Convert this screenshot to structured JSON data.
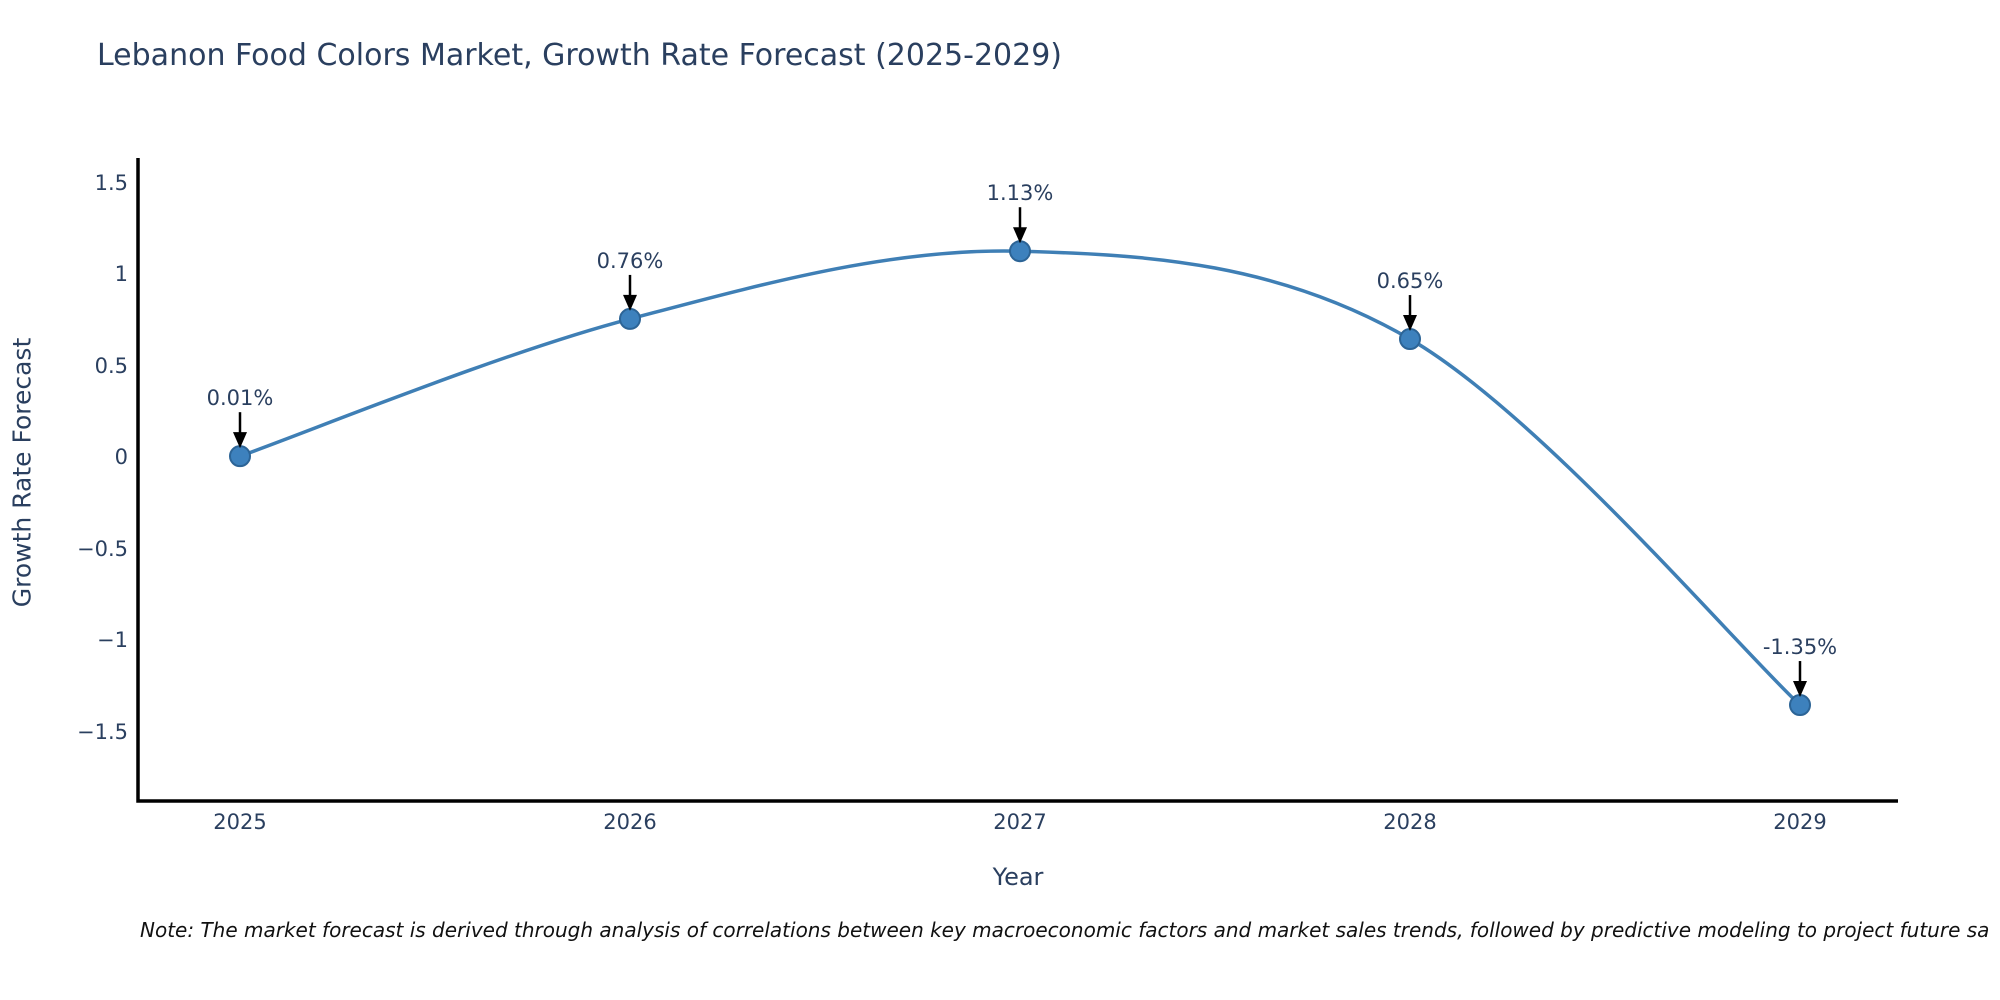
{
  "page": {
    "note": "Note: The market forecast is derived through analysis of correlations between key macroeconomic factors and market sales trends, followed by predictive modeling to project future sa"
  },
  "chart_data": {
    "type": "line",
    "title": "Lebanon Food Colors Market, Growth Rate Forecast (2025-2029)",
    "xlabel": "Year",
    "ylabel": "Growth Rate Forecast",
    "x": [
      2025,
      2026,
      2027,
      2028,
      2029
    ],
    "series": [
      {
        "name": "Growth Rate Forecast",
        "values": [
          0.01,
          0.76,
          1.13,
          0.65,
          -1.35
        ]
      }
    ],
    "point_labels": [
      "0.01%",
      "0.76%",
      "1.13%",
      "0.65%",
      "-1.35%"
    ],
    "x_tick_labels": [
      "2025",
      "2026",
      "2027",
      "2028",
      "2029"
    ],
    "y_ticks": [
      1.5,
      1,
      0.5,
      0,
      -0.5,
      -1,
      -1.5
    ],
    "y_tick_labels": [
      "1.5",
      "1",
      "0.5",
      "0",
      "−0.5",
      "−1",
      "−1.5"
    ],
    "ylim": [
      -1.87,
      1.64
    ],
    "grid": false,
    "legend": false,
    "line_shape": "spline",
    "marker_size": 20,
    "colors": {
      "line": "#3f7fb5",
      "marker_fill": "#3d81bd",
      "marker_edge": "#2c6496",
      "axis_line": "#000000",
      "text": "#2a3f5f",
      "annotation_arrow": "#000000",
      "note_text": "#111111",
      "background": "#ffffff"
    }
  }
}
